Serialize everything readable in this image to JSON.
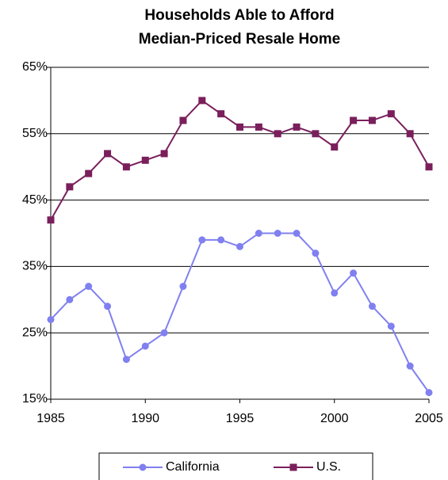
{
  "chart_data": {
    "type": "line",
    "title": [
      "Households Able to Afford",
      "Median-Priced Resale Home"
    ],
    "x": [
      1985,
      1986,
      1987,
      1988,
      1989,
      1990,
      1991,
      1992,
      1993,
      1994,
      1995,
      1996,
      1997,
      1998,
      1999,
      2000,
      2001,
      2002,
      2003,
      2004,
      2005
    ],
    "series": [
      {
        "name": "California",
        "color": "#8080f0",
        "marker": "circle",
        "values": [
          27,
          30,
          32,
          29,
          21,
          23,
          25,
          32,
          39,
          39,
          38,
          40,
          40,
          40,
          37,
          31,
          34,
          29,
          26,
          20,
          16
        ]
      },
      {
        "name": "U.S.",
        "color": "#7a1f5c",
        "marker": "square",
        "values": [
          42,
          47,
          49,
          52,
          50,
          51,
          52,
          57,
          60,
          58,
          56,
          56,
          55,
          56,
          55,
          53,
          57,
          57,
          58,
          55,
          50
        ]
      }
    ],
    "xlim": [
      1985,
      2005
    ],
    "xticks": [
      1985,
      1990,
      1995,
      2000,
      2005
    ],
    "ylim": [
      15,
      65
    ],
    "yticks": [
      {
        "value": 15,
        "label": "15%"
      },
      {
        "value": 25,
        "label": "25%"
      },
      {
        "value": 35,
        "label": "35%"
      },
      {
        "value": 45,
        "label": "45%"
      },
      {
        "value": 55,
        "label": "55%"
      },
      {
        "value": 65,
        "label": "65%"
      }
    ],
    "grid": true,
    "legend": "bottom"
  }
}
